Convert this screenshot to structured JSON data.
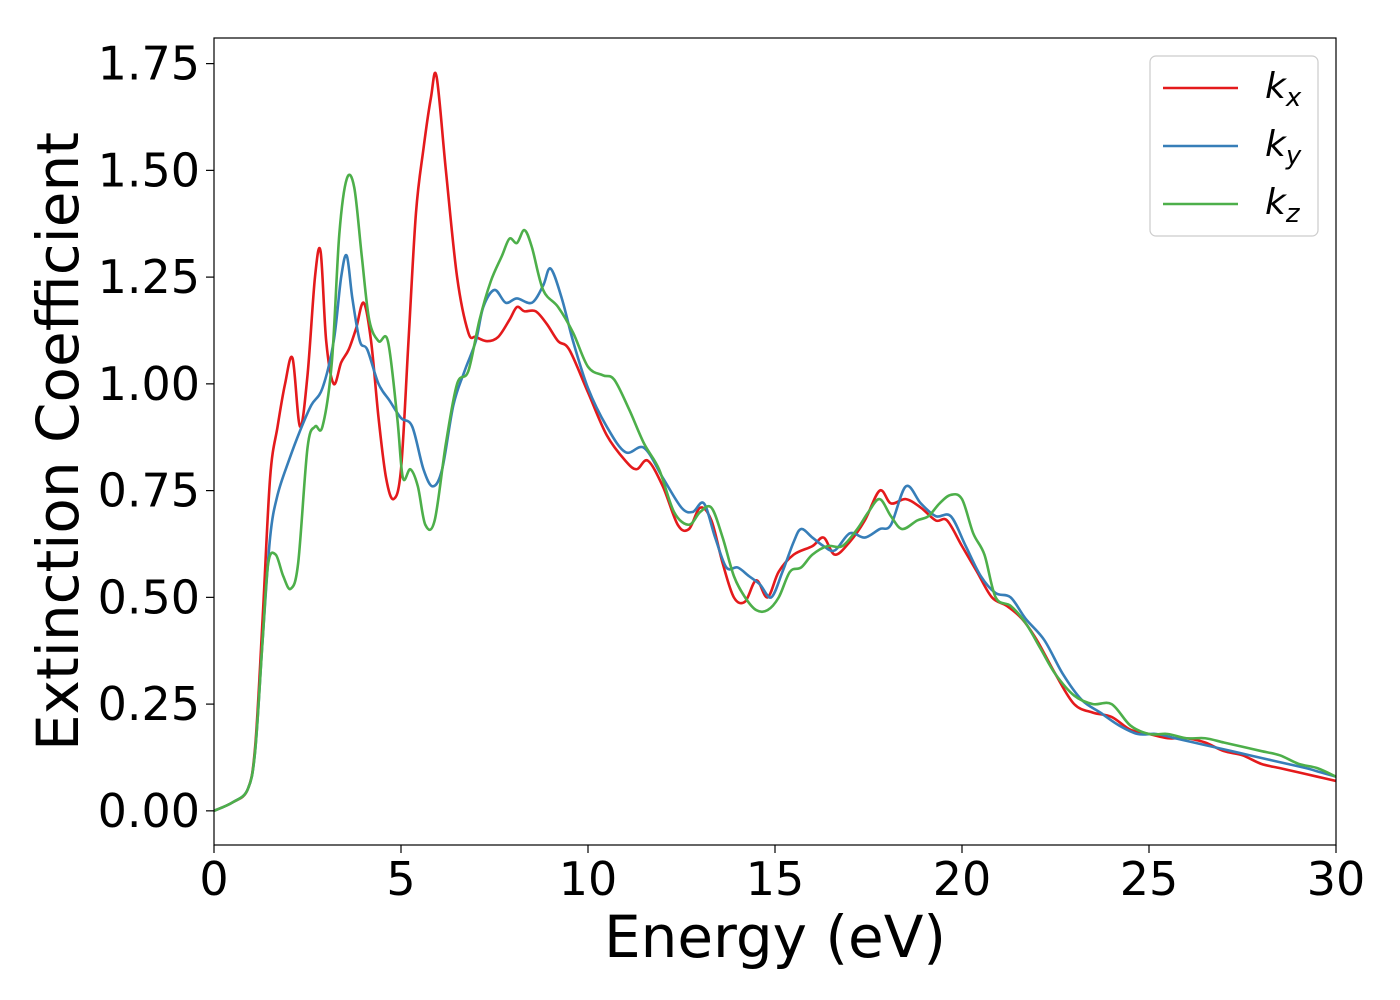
{
  "chart_data": {
    "type": "line",
    "xlabel": "Energy (eV)",
    "ylabel": "Extinction Coefficient",
    "xlim": [
      0,
      30
    ],
    "ylim": [
      -0.08,
      1.81
    ],
    "xticks": [
      0,
      5,
      10,
      15,
      20,
      25,
      30
    ],
    "xtick_labels": [
      "0",
      "5",
      "10",
      "15",
      "20",
      "25",
      "30"
    ],
    "yticks": [
      0.0,
      0.25,
      0.5,
      0.75,
      1.0,
      1.25,
      1.5,
      1.75
    ],
    "ytick_labels": [
      "0.00",
      "0.25",
      "0.50",
      "0.75",
      "1.00",
      "1.25",
      "1.50",
      "1.75"
    ],
    "grid": false,
    "legend_position": "top-right",
    "series": [
      {
        "name": "kx",
        "symbol": "k",
        "subscript": "x",
        "color": "#e41a1c",
        "x": [
          0,
          0.5,
          0.9,
          1.1,
          1.3,
          1.5,
          1.7,
          1.9,
          2.1,
          2.3,
          2.5,
          2.7,
          2.85,
          3.0,
          3.2,
          3.4,
          3.6,
          3.8,
          4.0,
          4.2,
          4.4,
          4.6,
          4.8,
          5.0,
          5.2,
          5.4,
          5.6,
          5.8,
          5.95,
          6.2,
          6.5,
          6.8,
          7.0,
          7.3,
          7.6,
          7.9,
          8.1,
          8.3,
          8.6,
          8.9,
          9.2,
          9.5,
          10.0,
          10.5,
          11.0,
          11.3,
          11.6,
          12.0,
          12.4,
          12.7,
          13.0,
          13.3,
          13.6,
          13.9,
          14.2,
          14.5,
          14.8,
          15.1,
          15.5,
          16.0,
          16.3,
          16.6,
          17.0,
          17.4,
          17.8,
          18.1,
          18.5,
          18.9,
          19.3,
          19.6,
          20.0,
          20.4,
          20.8,
          21.2,
          21.6,
          22.0,
          22.5,
          23.0,
          23.5,
          24.0,
          24.5,
          25.0,
          25.5,
          26.0,
          26.5,
          27.0,
          27.5,
          28.0,
          28.5,
          29.0,
          29.5,
          30.0
        ],
        "y": [
          0.0,
          0.02,
          0.05,
          0.15,
          0.45,
          0.78,
          0.9,
          1.0,
          1.06,
          0.9,
          1.02,
          1.25,
          1.31,
          1.1,
          1.0,
          1.05,
          1.08,
          1.13,
          1.19,
          1.1,
          0.92,
          0.78,
          0.73,
          0.8,
          1.1,
          1.4,
          1.55,
          1.67,
          1.72,
          1.5,
          1.25,
          1.12,
          1.11,
          1.1,
          1.11,
          1.15,
          1.18,
          1.17,
          1.17,
          1.14,
          1.1,
          1.08,
          0.98,
          0.88,
          0.82,
          0.8,
          0.82,
          0.76,
          0.67,
          0.66,
          0.71,
          0.68,
          0.58,
          0.5,
          0.49,
          0.54,
          0.5,
          0.56,
          0.6,
          0.62,
          0.64,
          0.6,
          0.63,
          0.68,
          0.75,
          0.72,
          0.73,
          0.71,
          0.68,
          0.68,
          0.62,
          0.56,
          0.5,
          0.48,
          0.45,
          0.4,
          0.32,
          0.25,
          0.23,
          0.22,
          0.19,
          0.18,
          0.17,
          0.17,
          0.16,
          0.14,
          0.13,
          0.11,
          0.1,
          0.09,
          0.08,
          0.07
        ]
      },
      {
        "name": "ky",
        "symbol": "k",
        "subscript": "y",
        "color": "#377eb8",
        "x": [
          0,
          0.5,
          0.9,
          1.1,
          1.3,
          1.5,
          1.7,
          2.0,
          2.3,
          2.6,
          2.9,
          3.2,
          3.4,
          3.55,
          3.7,
          3.9,
          4.1,
          4.4,
          4.7,
          5.0,
          5.3,
          5.6,
          5.85,
          6.1,
          6.4,
          6.7,
          7.0,
          7.2,
          7.5,
          7.8,
          8.1,
          8.5,
          8.8,
          9.0,
          9.3,
          9.6,
          10.0,
          10.5,
          11.0,
          11.5,
          12.0,
          12.5,
          12.8,
          13.1,
          13.4,
          13.7,
          14.0,
          14.3,
          14.6,
          14.9,
          15.2,
          15.5,
          15.7,
          16.0,
          16.3,
          16.6,
          17.0,
          17.4,
          17.8,
          18.1,
          18.5,
          18.9,
          19.3,
          19.7,
          20.1,
          20.5,
          20.9,
          21.3,
          21.7,
          22.2,
          22.7,
          23.2,
          23.7,
          24.2,
          24.7,
          25.2,
          25.7,
          26.2,
          26.7,
          27.2,
          27.7,
          28.2,
          28.7,
          29.2,
          29.6,
          30.0
        ],
        "y": [
          0.0,
          0.02,
          0.05,
          0.14,
          0.4,
          0.64,
          0.74,
          0.82,
          0.89,
          0.95,
          0.99,
          1.1,
          1.25,
          1.3,
          1.2,
          1.1,
          1.08,
          1.0,
          0.96,
          0.92,
          0.9,
          0.8,
          0.76,
          0.8,
          0.95,
          1.03,
          1.1,
          1.18,
          1.22,
          1.19,
          1.2,
          1.19,
          1.23,
          1.27,
          1.2,
          1.1,
          0.99,
          0.9,
          0.84,
          0.85,
          0.78,
          0.71,
          0.7,
          0.72,
          0.64,
          0.57,
          0.57,
          0.55,
          0.53,
          0.5,
          0.56,
          0.63,
          0.66,
          0.64,
          0.62,
          0.61,
          0.65,
          0.64,
          0.66,
          0.67,
          0.76,
          0.72,
          0.69,
          0.69,
          0.62,
          0.55,
          0.51,
          0.5,
          0.45,
          0.4,
          0.32,
          0.26,
          0.23,
          0.2,
          0.18,
          0.18,
          0.17,
          0.16,
          0.15,
          0.14,
          0.13,
          0.12,
          0.11,
          0.1,
          0.09,
          0.08
        ]
      },
      {
        "name": "kz",
        "symbol": "k",
        "subscript": "z",
        "color": "#4daf4a",
        "x": [
          0,
          0.5,
          0.9,
          1.1,
          1.3,
          1.45,
          1.65,
          1.85,
          2.05,
          2.25,
          2.5,
          2.7,
          2.9,
          3.15,
          3.35,
          3.55,
          3.75,
          3.95,
          4.15,
          4.4,
          4.65,
          4.9,
          5.05,
          5.25,
          5.45,
          5.65,
          5.9,
          6.2,
          6.5,
          6.8,
          7.1,
          7.4,
          7.7,
          7.9,
          8.1,
          8.3,
          8.5,
          8.8,
          9.2,
          9.6,
          10.0,
          10.4,
          10.7,
          11.1,
          11.5,
          11.9,
          12.3,
          12.7,
          13.0,
          13.3,
          13.6,
          13.9,
          14.2,
          14.5,
          14.8,
          15.1,
          15.4,
          15.7,
          16.0,
          16.4,
          16.8,
          17.2,
          17.5,
          17.8,
          18.1,
          18.4,
          18.8,
          19.1,
          19.4,
          19.7,
          20.0,
          20.3,
          20.6,
          20.9,
          21.3,
          21.7,
          22.1,
          22.5,
          23.0,
          23.5,
          24.0,
          24.5,
          25.0,
          25.5,
          26.0,
          26.5,
          27.0,
          27.5,
          28.0,
          28.5,
          29.0,
          29.5,
          30.0
        ],
        "y": [
          0.0,
          0.02,
          0.05,
          0.14,
          0.4,
          0.58,
          0.6,
          0.55,
          0.52,
          0.58,
          0.85,
          0.9,
          0.9,
          1.05,
          1.35,
          1.48,
          1.46,
          1.3,
          1.15,
          1.1,
          1.1,
          0.92,
          0.78,
          0.8,
          0.76,
          0.67,
          0.68,
          0.86,
          1.0,
          1.03,
          1.15,
          1.24,
          1.3,
          1.34,
          1.33,
          1.36,
          1.32,
          1.22,
          1.18,
          1.12,
          1.04,
          1.02,
          1.01,
          0.94,
          0.86,
          0.8,
          0.7,
          0.67,
          0.7,
          0.71,
          0.64,
          0.55,
          0.5,
          0.47,
          0.47,
          0.5,
          0.56,
          0.57,
          0.6,
          0.62,
          0.62,
          0.66,
          0.7,
          0.73,
          0.69,
          0.66,
          0.68,
          0.69,
          0.72,
          0.74,
          0.73,
          0.65,
          0.6,
          0.5,
          0.48,
          0.44,
          0.38,
          0.32,
          0.27,
          0.25,
          0.25,
          0.2,
          0.18,
          0.18,
          0.17,
          0.17,
          0.16,
          0.15,
          0.14,
          0.13,
          0.11,
          0.1,
          0.08
        ]
      }
    ]
  }
}
